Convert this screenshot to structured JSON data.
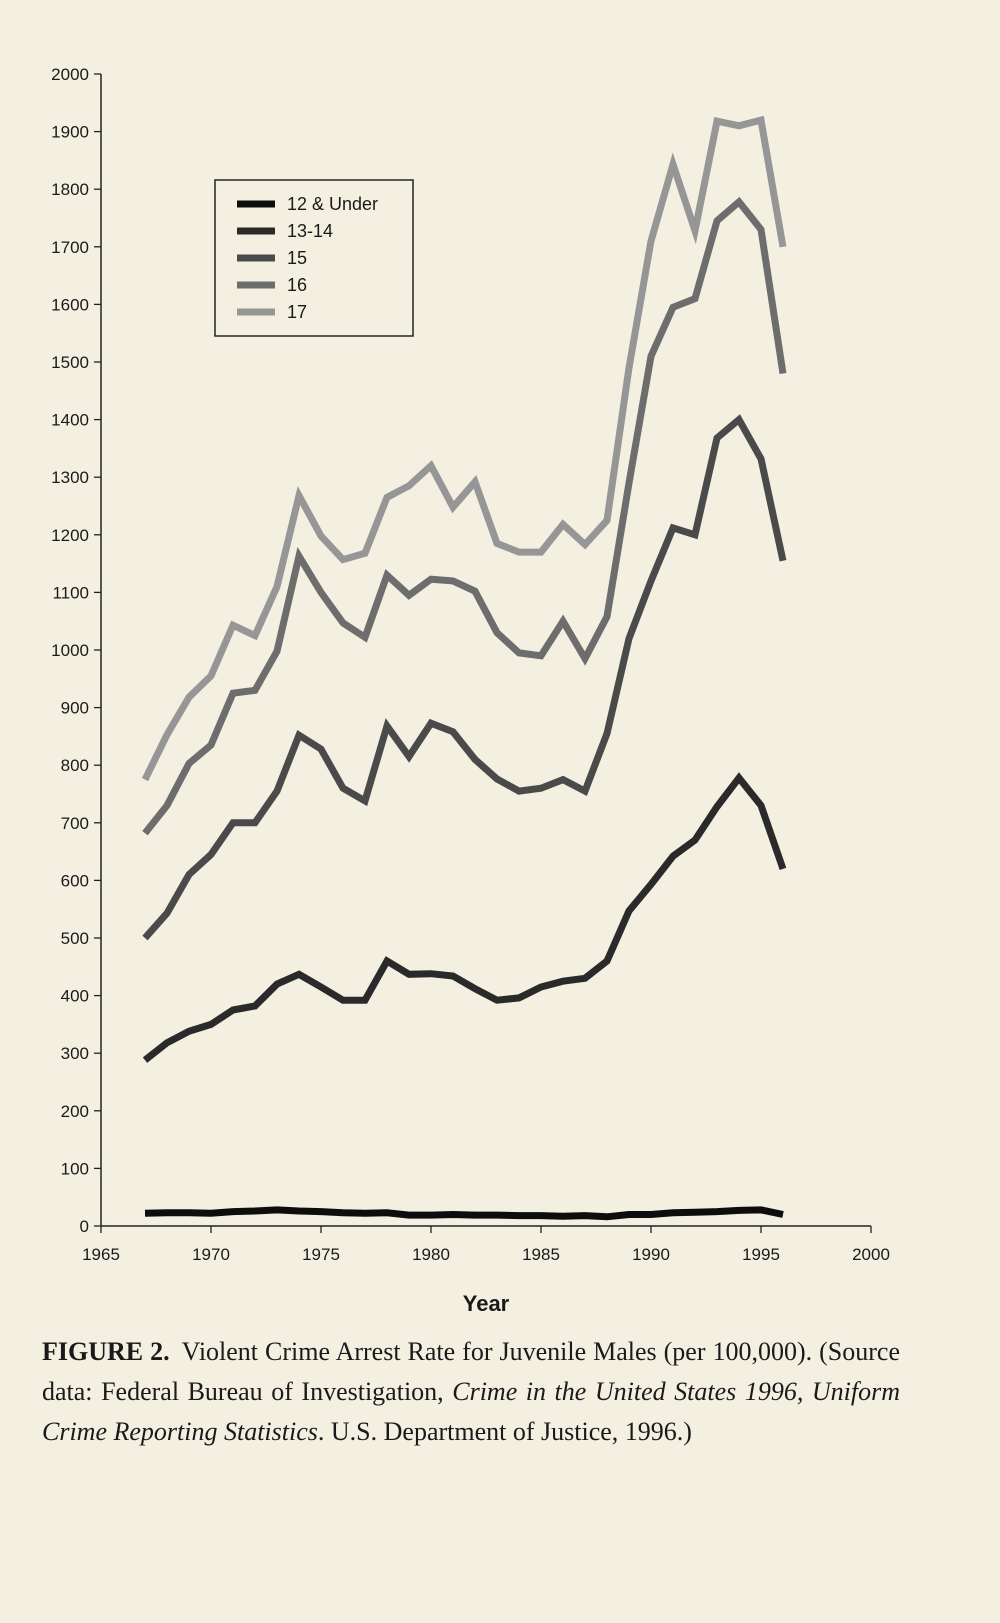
{
  "chart_data": {
    "type": "line",
    "title": "",
    "xlabel": "Year",
    "ylabel": "",
    "xlim": [
      1965,
      2000
    ],
    "ylim": [
      0,
      2000
    ],
    "xticks": [
      1965,
      1970,
      1975,
      1980,
      1985,
      1990,
      1995,
      2000
    ],
    "yticks": [
      0,
      100,
      200,
      300,
      400,
      500,
      600,
      700,
      800,
      900,
      1000,
      1100,
      1200,
      1300,
      1400,
      1500,
      1600,
      1700,
      1800,
      1900,
      2000
    ],
    "legend_position": "top-left",
    "grid": false,
    "x": [
      1967,
      1968,
      1969,
      1970,
      1971,
      1972,
      1973,
      1974,
      1975,
      1976,
      1977,
      1978,
      1979,
      1980,
      1981,
      1982,
      1983,
      1984,
      1985,
      1986,
      1987,
      1988,
      1989,
      1990,
      1991,
      1992,
      1993,
      1994,
      1995,
      1996
    ],
    "series": [
      {
        "name": "12 & Under",
        "color": "#0d0d0d",
        "values": [
          22,
          23,
          23,
          22,
          25,
          26,
          28,
          26,
          25,
          23,
          22,
          23,
          19,
          19,
          20,
          19,
          19,
          18,
          18,
          17,
          18,
          16,
          20,
          20,
          23,
          24,
          25,
          27,
          28,
          20
        ]
      },
      {
        "name": "13-14",
        "color": "#2a2a2a",
        "values": [
          288,
          318,
          338,
          350,
          375,
          382,
          420,
          437,
          415,
          392,
          392,
          460,
          437,
          438,
          434,
          412,
          392,
          396,
          415,
          425,
          430,
          460,
          547,
          593,
          642,
          670,
          728,
          778,
          730,
          620
        ]
      },
      {
        "name": "15",
        "color": "#4a4a4a",
        "values": [
          500,
          543,
          610,
          645,
          700,
          700,
          755,
          852,
          828,
          760,
          738,
          868,
          815,
          873,
          858,
          810,
          776,
          755,
          760,
          775,
          755,
          855,
          1020,
          1120,
          1212,
          1200,
          1368,
          1400,
          1332,
          1155
        ]
      },
      {
        "name": "16",
        "color": "#6d6d6d",
        "values": [
          682,
          730,
          803,
          835,
          925,
          930,
          998,
          1163,
          1100,
          1047,
          1022,
          1130,
          1095,
          1123,
          1120,
          1102,
          1030,
          995,
          990,
          1050,
          985,
          1058,
          1290,
          1510,
          1595,
          1610,
          1745,
          1778,
          1730,
          1480
        ]
      },
      {
        "name": "17",
        "color": "#969696",
        "values": [
          775,
          853,
          918,
          955,
          1043,
          1025,
          1110,
          1268,
          1198,
          1157,
          1168,
          1265,
          1285,
          1320,
          1248,
          1292,
          1185,
          1170,
          1170,
          1218,
          1183,
          1225,
          1490,
          1710,
          1843,
          1728,
          1918,
          1910,
          1920,
          1700
        ]
      }
    ]
  },
  "caption": {
    "label": "FIGURE 2.",
    "text_part1": "Violent Crime Arrest Rate for Juvenile Males (per 100,000). (Source data: Federal Bureau of Investigation,",
    "italic_part": "Crime in the United States 1996, Uniform Crime Reporting Statistics",
    "text_part2": ". U.S. Department of Justice, 1996.)"
  }
}
